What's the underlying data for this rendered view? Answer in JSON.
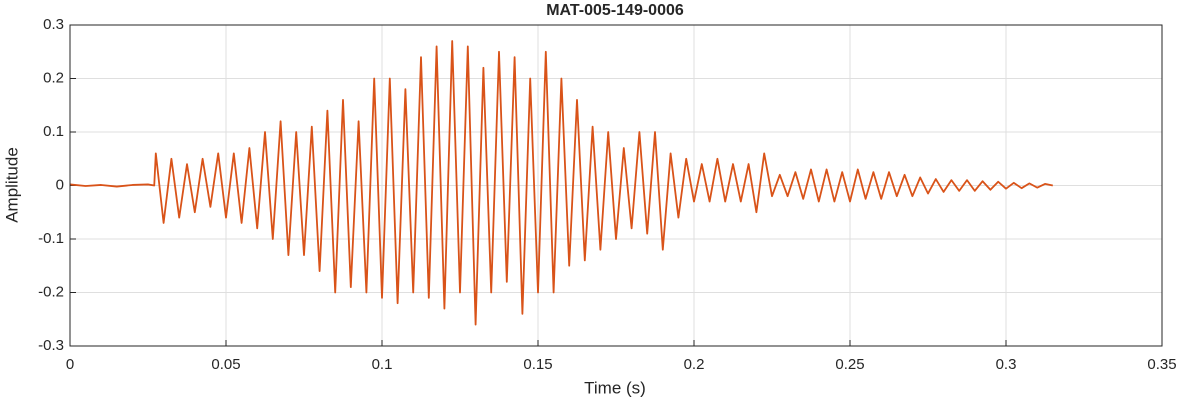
{
  "chart_data": {
    "type": "line",
    "title": "MAT-005-149-0006",
    "x_label": "Time (s)",
    "y_label": "Amplitude",
    "xlim": [
      0,
      0.35
    ],
    "xticks": [
      0,
      0.05,
      0.1,
      0.15,
      0.2,
      0.25,
      0.3,
      0.35
    ],
    "ylim": [
      -0.3,
      0.3
    ],
    "yticks": [
      -0.3,
      -0.2,
      -0.1,
      0,
      0.1,
      0.2,
      0.3
    ],
    "grid": true,
    "x": [
      0,
      0.005,
      0.01,
      0.015,
      0.02,
      0.025,
      0.027,
      0.0275,
      0.03,
      0.0325,
      0.035,
      0.0375,
      0.04,
      0.0425,
      0.045,
      0.0475,
      0.05,
      0.0525,
      0.055,
      0.0575,
      0.06,
      0.0625,
      0.065,
      0.0675,
      0.07,
      0.0725,
      0.075,
      0.0775,
      0.08,
      0.0825,
      0.085,
      0.0875,
      0.09,
      0.0925,
      0.095,
      0.0975,
      0.1,
      0.1025,
      0.105,
      0.1075,
      0.11,
      0.1125,
      0.115,
      0.1175,
      0.12,
      0.1225,
      0.125,
      0.1275,
      0.13,
      0.1325,
      0.135,
      0.1375,
      0.14,
      0.1425,
      0.145,
      0.1475,
      0.15,
      0.1525,
      0.155,
      0.1575,
      0.16,
      0.1625,
      0.165,
      0.1675,
      0.17,
      0.1725,
      0.175,
      0.1775,
      0.18,
      0.1825,
      0.185,
      0.1875,
      0.19,
      0.1925,
      0.195,
      0.1975,
      0.2,
      0.2025,
      0.205,
      0.2075,
      0.21,
      0.2125,
      0.215,
      0.2175,
      0.22,
      0.2225,
      0.225,
      0.2275,
      0.23,
      0.2325,
      0.235,
      0.2375,
      0.24,
      0.2425,
      0.245,
      0.2475,
      0.25,
      0.2525,
      0.255,
      0.2575,
      0.26,
      0.2625,
      0.265,
      0.2675,
      0.27,
      0.2725,
      0.275,
      0.2775,
      0.28,
      0.2825,
      0.285,
      0.2875,
      0.29,
      0.2925,
      0.295,
      0.2975,
      0.3,
      0.3025,
      0.305,
      0.3075,
      0.31,
      0.3125,
      0.315
    ],
    "series": [
      {
        "color": "#d95319",
        "values": [
          0.002,
          -0.001,
          0.001,
          -0.002,
          0.001,
          0.002,
          0,
          0.06,
          -0.07,
          0.05,
          -0.06,
          0.04,
          -0.05,
          0.05,
          -0.04,
          0.06,
          -0.06,
          0.06,
          -0.07,
          0.07,
          -0.08,
          0.1,
          -0.1,
          0.12,
          -0.13,
          0.1,
          -0.13,
          0.11,
          -0.16,
          0.14,
          -0.2,
          0.16,
          -0.19,
          0.12,
          -0.2,
          0.2,
          -0.21,
          0.2,
          -0.22,
          0.18,
          -0.2,
          0.24,
          -0.21,
          0.26,
          -0.23,
          0.27,
          -0.2,
          0.26,
          -0.26,
          0.22,
          -0.2,
          0.25,
          -0.18,
          0.24,
          -0.24,
          0.2,
          -0.2,
          0.25,
          -0.2,
          0.2,
          -0.15,
          0.16,
          -0.14,
          0.11,
          -0.12,
          0.1,
          -0.1,
          0.07,
          -0.08,
          0.1,
          -0.09,
          0.1,
          -0.12,
          0.06,
          -0.06,
          0.05,
          -0.03,
          0.04,
          -0.03,
          0.05,
          -0.03,
          0.04,
          -0.03,
          0.04,
          -0.05,
          0.06,
          -0.02,
          0.02,
          -0.02,
          0.025,
          -0.025,
          0.03,
          -0.03,
          0.03,
          -0.03,
          0.025,
          -0.03,
          0.03,
          -0.025,
          0.025,
          -0.025,
          0.025,
          -0.02,
          0.02,
          -0.02,
          0.015,
          -0.015,
          0.012,
          -0.012,
          0.01,
          -0.01,
          0.01,
          -0.01,
          0.008,
          -0.008,
          0.007,
          -0.006,
          0.005,
          -0.005,
          0.004,
          -0.004,
          0.003,
          0
        ]
      }
    ]
  }
}
